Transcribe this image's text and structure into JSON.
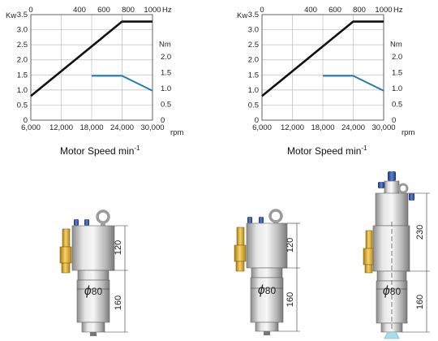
{
  "colors": {
    "power_line": "#111111",
    "torque_line": "#1a7fb0",
    "grid": "#bdbdbd",
    "metal": "#c9c9c9",
    "brass": "#e3b23c",
    "cap_blue": "#2a4fa0"
  },
  "chart_data": [
    {
      "type": "line",
      "id": "left",
      "caption": "Motor Speed min",
      "caption_sup": "-1",
      "units": {
        "kw": "Kw",
        "hz": "Hz",
        "nm": "Nm",
        "rpm": "rpm"
      },
      "hz_ticks": [
        "0",
        "400",
        "600",
        "800",
        "1000"
      ],
      "hz_tick_values": [
        0,
        400,
        600,
        800,
        1000
      ],
      "hz_range": [
        0,
        1000
      ],
      "x_tick_labels": [
        "6,000",
        "12,000",
        "18,000",
        "24,000",
        "30,000"
      ],
      "x_tick_values": [
        6000,
        12000,
        18000,
        24000,
        30000
      ],
      "x_range": [
        6000,
        30000
      ],
      "kw_tick_labels": [
        "3.5",
        "3.0",
        "2.5",
        "2.0",
        "1.5",
        "1.0",
        "0.5",
        "0"
      ],
      "kw_tick_values": [
        3.5,
        3.0,
        2.5,
        2.0,
        1.5,
        1.0,
        0.5,
        0
      ],
      "kw_range": [
        0,
        3.5
      ],
      "nm_tick_labels": [
        "2.0",
        "1.5",
        "1.0",
        "0.5",
        "0"
      ],
      "nm_tick_values": [
        2.0,
        1.5,
        1.0,
        0.5,
        0
      ],
      "nm_range": [
        0,
        2.0
      ],
      "nm_label_at": 2.4,
      "grid": true,
      "series": [
        {
          "axis": "kw",
          "color": "#111111",
          "x": [
            6000,
            24000,
            30000
          ],
          "y": [
            0.8,
            3.27,
            3.27
          ]
        },
        {
          "axis": "nm",
          "color": "#1a7fb0",
          "x": [
            18000,
            24000,
            30000
          ],
          "y": [
            1.4,
            1.4,
            0.93
          ]
        }
      ]
    },
    {
      "type": "line",
      "id": "right",
      "caption": "Motor Speed min",
      "caption_sup": "-1",
      "units": {
        "kw": "Kw",
        "hz": "Hz",
        "nm": "Nm",
        "rpm": "rpm"
      },
      "hz_ticks": [
        "0",
        "400",
        "600",
        "800",
        "1000"
      ],
      "hz_tick_values": [
        0,
        400,
        600,
        800,
        1000
      ],
      "hz_range": [
        0,
        1000
      ],
      "x_tick_labels": [
        "6,000",
        "12,000",
        "18,000",
        "24,000",
        "30,000"
      ],
      "x_tick_values": [
        6000,
        12000,
        18000,
        24000,
        30000
      ],
      "x_range": [
        6000,
        30000
      ],
      "kw_tick_labels": [
        "3.5",
        "3.0",
        "2.5",
        "2.0",
        "1.5",
        "1.0",
        "0.5",
        "0"
      ],
      "kw_tick_values": [
        3.5,
        3.0,
        2.5,
        2.0,
        1.5,
        1.0,
        0.5,
        0
      ],
      "kw_range": [
        0,
        3.5
      ],
      "nm_tick_labels": [
        "2.0",
        "1.5",
        "1.0",
        "0.5",
        "0"
      ],
      "nm_tick_values": [
        2.0,
        1.5,
        1.0,
        0.5,
        0
      ],
      "nm_range": [
        0,
        2.0
      ],
      "nm_label_at": 2.4,
      "grid": true,
      "series": [
        {
          "axis": "kw",
          "color": "#111111",
          "x": [
            6000,
            24000,
            30000
          ],
          "y": [
            0.8,
            3.27,
            3.27
          ]
        },
        {
          "axis": "nm",
          "color": "#1a7fb0",
          "x": [
            18000,
            24000,
            30000
          ],
          "y": [
            1.4,
            1.4,
            0.93
          ]
        }
      ]
    }
  ],
  "spindles": [
    {
      "id": "a",
      "dim_upper": "120",
      "dim_lower": "160",
      "diameter_symbol": "ϕ",
      "diameter": "80"
    },
    {
      "id": "b",
      "dim_upper": "120",
      "dim_lower": "160",
      "diameter_symbol": "ϕ",
      "diameter": "80"
    },
    {
      "id": "c",
      "dim_upper": "230",
      "dim_lower": "160",
      "diameter_symbol": "ϕ",
      "diameter": "80"
    }
  ]
}
